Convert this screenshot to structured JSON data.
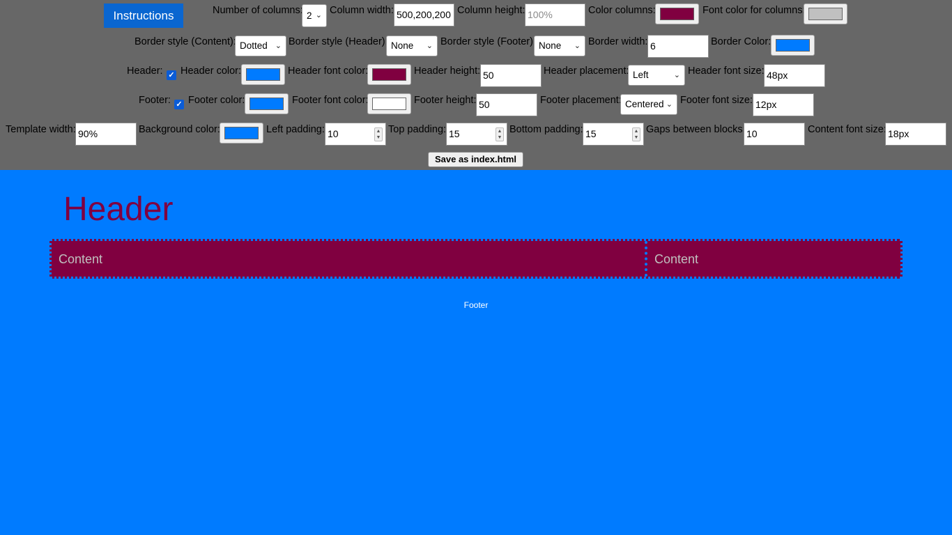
{
  "instructions_label": "Instructions",
  "save_label": "Save as index.html",
  "row1": {
    "num_columns_label": "Number of columns:",
    "num_columns_value": "2",
    "column_width_label": "Column width:",
    "column_width_value": "500,200,200",
    "column_height_label": "Column height:",
    "column_height_placeholder": "100%",
    "color_columns_label": "Color columns:",
    "color_columns_value": "#800040",
    "font_color_columns_label": "Font color for columns:",
    "font_color_columns_value": "#c0c0c0"
  },
  "row2": {
    "border_content_label": "Border style (Content):",
    "border_content_value": "Dotted",
    "border_header_label": "Border style (Header):",
    "border_header_value": "None",
    "border_footer_label": "Border style (Footer):",
    "border_footer_value": "None",
    "border_width_label": "Border width:",
    "border_width_value": "6",
    "border_color_label": "Border Color:",
    "border_color_value": "#007bff"
  },
  "row3": {
    "header_label": "Header:",
    "header_checked": true,
    "header_color_label": "Header color:",
    "header_color_value": "#007bff",
    "header_font_color_label": "Header font color:",
    "header_font_color_value": "#800040",
    "header_height_label": "Header height:",
    "header_height_value": "50",
    "header_placement_label": "Header placement:",
    "header_placement_value": "Left",
    "header_font_size_label": "Header font size:",
    "header_font_size_value": "48px"
  },
  "row4": {
    "footer_label": "Footer:",
    "footer_checked": true,
    "footer_color_label": "Footer color:",
    "footer_color_value": "#007bff",
    "footer_font_color_label": "Footer font color:",
    "footer_font_color_value": "#ffffff",
    "footer_height_label": "Footer height:",
    "footer_height_value": "50",
    "footer_placement_label": "Footer placement:",
    "footer_placement_value": "Centered",
    "footer_font_size_label": "Footer font size:",
    "footer_font_size_value": "12px"
  },
  "row5": {
    "template_width_label": "Template width:",
    "template_width_value": "90%",
    "background_color_label": "Background color:",
    "background_color_value": "#007bff",
    "left_padding_label": "Left padding:",
    "left_padding_value": "10",
    "top_padding_label": "Top padding:",
    "top_padding_value": "15",
    "bottom_padding_label": "Bottom padding:",
    "bottom_padding_value": "15",
    "gaps_label": "Gaps between blocks:",
    "gaps_value": "10",
    "content_font_size_label": "Content font size:",
    "content_font_size_value": "18px"
  },
  "preview": {
    "header_text": "Header",
    "columns": [
      "Content",
      "Content"
    ],
    "footer_text": "Footer"
  }
}
